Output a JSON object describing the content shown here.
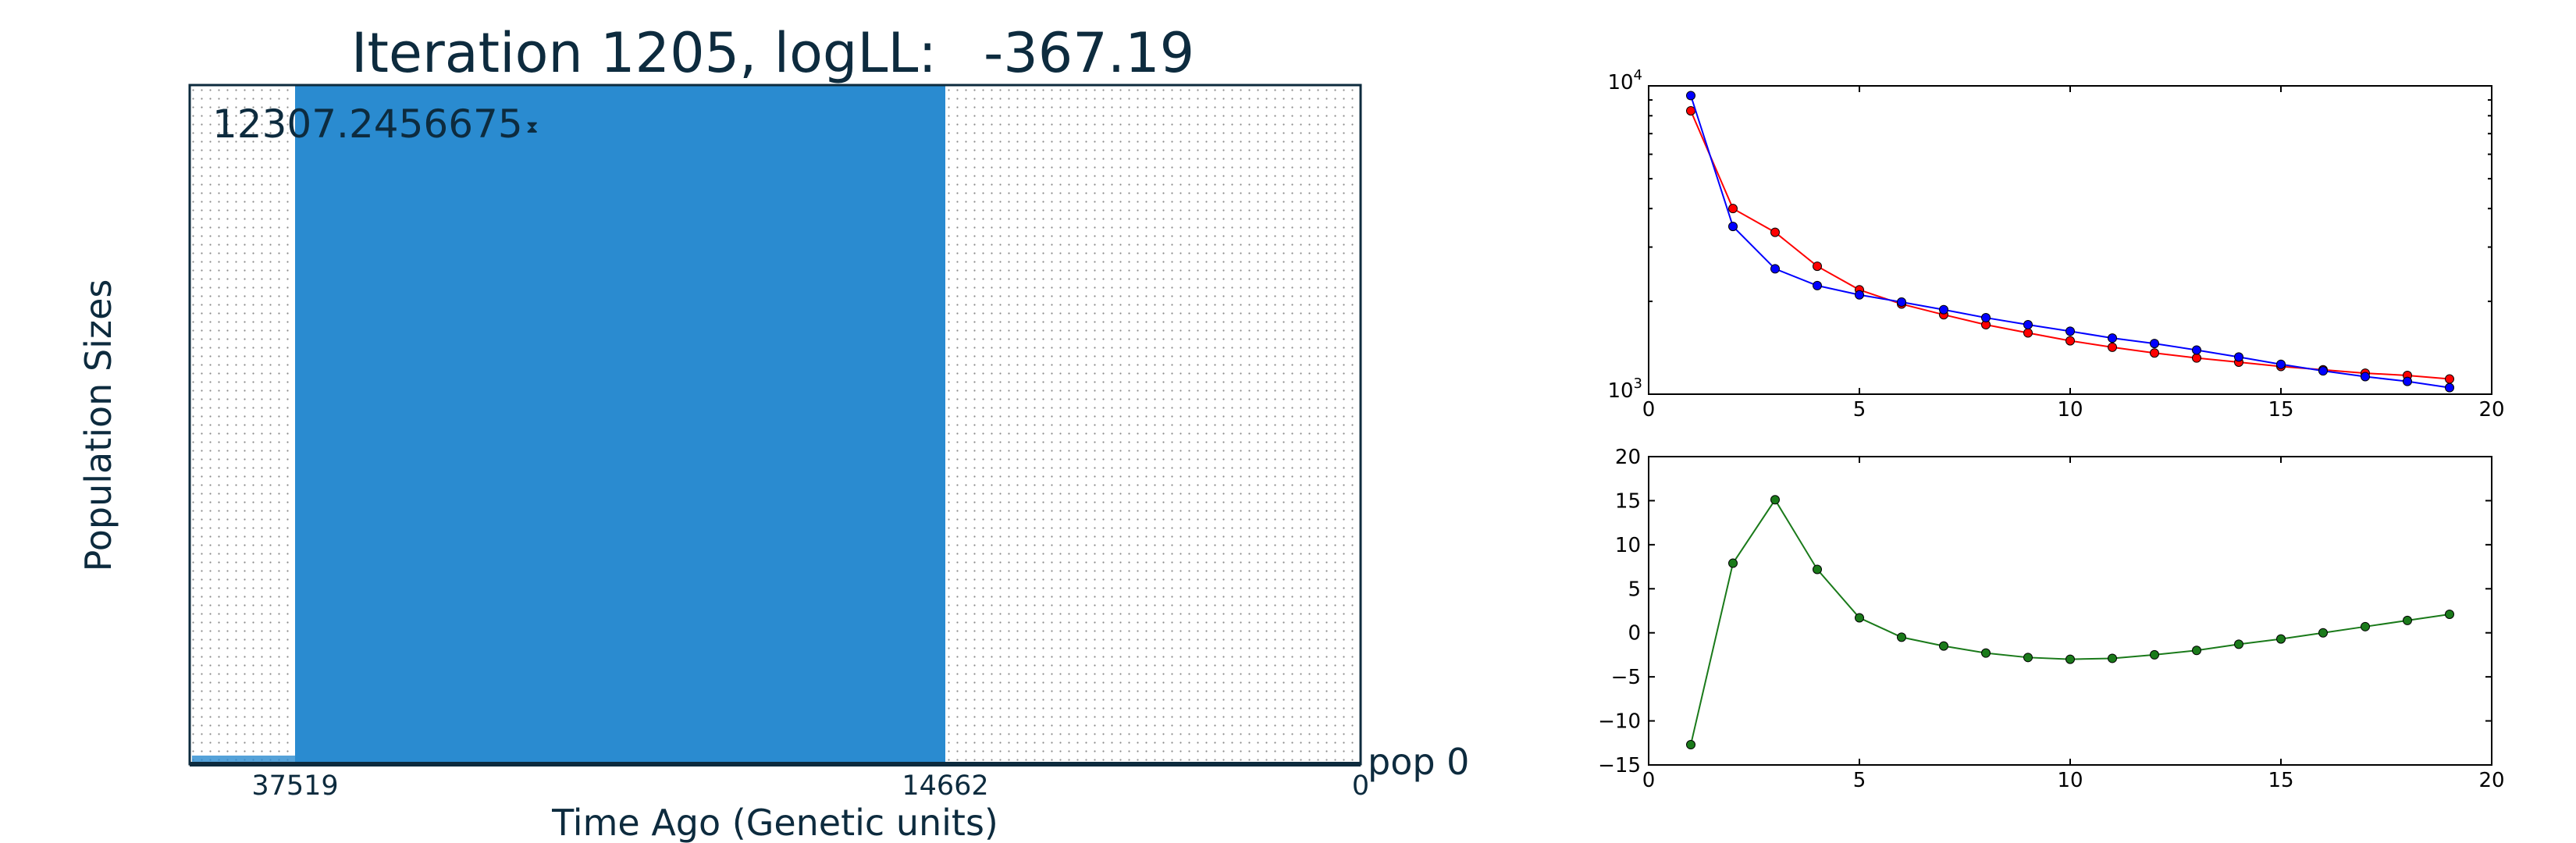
{
  "left_panel": {
    "title_prefix": "Iteration 1205, logLL:",
    "title_value": "-367.19",
    "ylabel": "Population Sizes",
    "xlabel": "Time Ago (Genetic units)",
    "population_label": "pop 0",
    "size_annotation": "12307.2456675",
    "colors": {
      "text": "#0d2b3e",
      "fill": "#2a8bd0",
      "axes": "#0d2b3e",
      "grid_dot": "#8a8a8a"
    }
  },
  "chart_data": [
    {
      "type": "area",
      "x_direction": "reversed",
      "xticks": [
        {
          "label": "37519",
          "value": 37519
        },
        {
          "label": "14662",
          "value": 14662
        },
        {
          "label": "0",
          "value": 0
        }
      ],
      "series": [
        {
          "name": "pop 0",
          "epoch_start": 37519,
          "epoch_end": 14662,
          "size": 12307.2456675
        }
      ]
    },
    {
      "type": "line",
      "yscale": "log",
      "xlim": [
        0,
        20
      ],
      "ylim": [
        1000,
        10000
      ],
      "xticks": [
        "0",
        "5",
        "10",
        "15",
        "20"
      ],
      "yticks": [
        {
          "base": "10",
          "exp": "3",
          "value": 1000
        },
        {
          "base": "10",
          "exp": "4",
          "value": 10000
        }
      ],
      "x": [
        1,
        2,
        3,
        4,
        5,
        6,
        7,
        8,
        9,
        10,
        11,
        12,
        13,
        14,
        15,
        16,
        17,
        18,
        19
      ],
      "series": [
        {
          "color": "#ff0000",
          "values": [
            8300,
            4000,
            3350,
            2600,
            2180,
            1960,
            1810,
            1680,
            1580,
            1490,
            1420,
            1360,
            1310,
            1270,
            1230,
            1200,
            1170,
            1150,
            1120
          ]
        },
        {
          "color": "#0000ff",
          "values": [
            9300,
            3500,
            2550,
            2250,
            2100,
            1990,
            1880,
            1770,
            1680,
            1600,
            1520,
            1460,
            1390,
            1320,
            1250,
            1190,
            1140,
            1100,
            1050
          ]
        }
      ],
      "grid": false
    },
    {
      "type": "line",
      "xlim": [
        0,
        20
      ],
      "ylim": [
        -15,
        20
      ],
      "xticks": [
        "0",
        "5",
        "10",
        "15",
        "20"
      ],
      "yticks": [
        "20",
        "15",
        "10",
        "5",
        "0",
        "−5",
        "−10",
        "−15"
      ],
      "x": [
        1,
        2,
        3,
        4,
        5,
        6,
        7,
        8,
        9,
        10,
        11,
        12,
        13,
        14,
        15,
        16,
        17,
        18,
        19
      ],
      "series": [
        {
          "color": "#1a7a1a",
          "values": [
            -12.7,
            7.9,
            15.1,
            7.2,
            1.7,
            -0.5,
            -1.5,
            -2.3,
            -2.8,
            -3.0,
            -2.9,
            -2.5,
            -2.0,
            -1.3,
            -0.7,
            0.0,
            0.7,
            1.4,
            2.1
          ]
        }
      ],
      "grid": false
    }
  ]
}
